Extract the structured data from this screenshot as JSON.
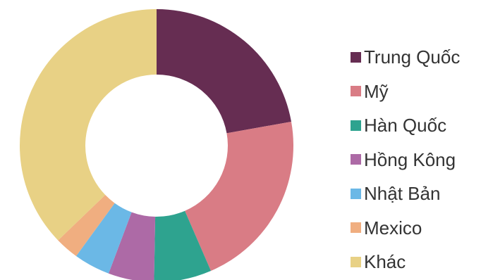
{
  "chart_data": {
    "type": "pie",
    "title": "",
    "donut": true,
    "legend_position": "right",
    "categories": [
      "Trung Quốc",
      "Mỹ",
      "Hàn Quốc",
      "Hồng Kông",
      "Nhật Bản",
      "Mexico",
      "Khác"
    ],
    "values": [
      22.2,
      21.3,
      6.8,
      5.4,
      4.3,
      2.8,
      37.2
    ],
    "unit": "%",
    "colors": [
      "#662d52",
      "#d97c85",
      "#2ea38f",
      "#ad6aa6",
      "#6bb8e6",
      "#f0ae80",
      "#e8d185"
    ]
  }
}
